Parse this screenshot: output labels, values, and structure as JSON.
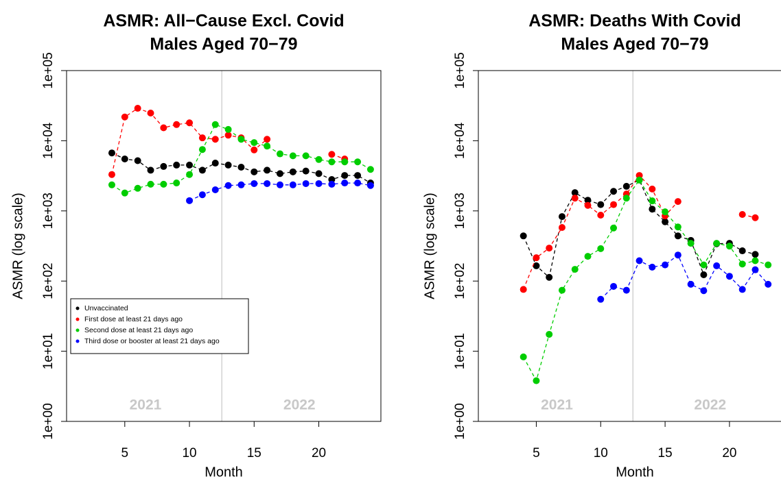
{
  "chart_data": [
    {
      "type": "scatter",
      "title": "ASMR: All−Cause Excl. Covid",
      "subtitle": "Males Aged 70−79",
      "xlabel": "Month",
      "ylabel": "ASMR (log scale)",
      "annotations": [
        "2021",
        "2022"
      ],
      "x": [
        4,
        5,
        6,
        7,
        8,
        9,
        10,
        11,
        12,
        13,
        14,
        15,
        16,
        17,
        18,
        19,
        20,
        21,
        22,
        23,
        24
      ],
      "series": [
        {
          "name": "Unvaccinated",
          "color": "#000000",
          "values": [
            6700,
            5500,
            5200,
            3800,
            4300,
            4500,
            4500,
            3800,
            4800,
            4500,
            4200,
            3600,
            3800,
            3400,
            3600,
            3700,
            3400,
            2800,
            3200,
            3200,
            2500
          ]
        },
        {
          "name": "First dose at least 21 days ago",
          "color": "#ff0000",
          "values": [
            3300,
            21800,
            29000,
            24800,
            15300,
            17000,
            18000,
            11000,
            10500,
            12000,
            11000,
            7400,
            10500,
            null,
            null,
            null,
            null,
            6400,
            5500,
            null,
            null
          ]
        },
        {
          "name": "Second dose at least 21 days ago",
          "color": "#00cd00",
          "values": [
            2350,
            1800,
            2100,
            2400,
            2400,
            2500,
            3300,
            7500,
            17000,
            14500,
            10500,
            9400,
            8400,
            6500,
            6100,
            6100,
            5400,
            5000,
            5000,
            5000,
            3900
          ]
        },
        {
          "name": "Third dose or booster at least 21 days ago",
          "color": "#0000ff",
          "values": [
            null,
            null,
            null,
            null,
            null,
            null,
            1400,
            1700,
            2000,
            2300,
            2350,
            2450,
            2450,
            2350,
            2350,
            2450,
            2450,
            2400,
            2500,
            2500,
            2300
          ]
        }
      ],
      "xlim": [
        0.5,
        24.8
      ],
      "xticks": [
        5,
        10,
        15,
        20
      ],
      "ylim": [
        1,
        100000
      ],
      "log_y": true,
      "yticks": [
        {
          "value": 1,
          "label": "1e+00"
        },
        {
          "value": 10,
          "label": "1e+01"
        },
        {
          "value": 100,
          "label": "1e+02"
        },
        {
          "value": 1000,
          "label": "1e+03"
        },
        {
          "value": 10000,
          "label": "1e+04"
        },
        {
          "value": 100000,
          "label": "1e+05"
        }
      ],
      "legend": "bottom-left"
    },
    {
      "type": "scatter",
      "title": "ASMR: Deaths With Covid",
      "subtitle": "Males Aged 70−79",
      "xlabel": "Month",
      "ylabel": "ASMR (log scale)",
      "annotations": [
        "2021",
        "2022"
      ],
      "x": [
        4,
        5,
        6,
        7,
        8,
        9,
        10,
        11,
        12,
        13,
        14,
        15,
        16,
        17,
        18,
        19,
        20,
        21,
        22,
        23,
        24
      ],
      "series": [
        {
          "color": "#000000",
          "values": [
            440,
            165,
            113,
            830,
            1820,
            1420,
            1230,
            1900,
            2240,
            2750,
            1060,
            700,
            440,
            380,
            123,
            340,
            345,
            270,
            240,
            null,
            null
          ]
        },
        {
          "color": "#ff0000",
          "values": [
            76,
            215,
            295,
            580,
            1520,
            1200,
            870,
            1230,
            1740,
            3200,
            2050,
            850,
            1360,
            null,
            null,
            null,
            null,
            890,
            800,
            null,
            null
          ]
        },
        {
          "color": "#00cd00",
          "values": [
            8.3,
            3.8,
            17.4,
            74,
            147,
            225,
            290,
            570,
            1520,
            2750,
            1390,
            970,
            590,
            345,
            170,
            345,
            315,
            175,
            195,
            170,
            null
          ]
        },
        {
          "color": "#0000ff",
          "values": [
            null,
            null,
            null,
            null,
            null,
            null,
            55,
            84,
            74,
            195,
            158,
            170,
            235,
            90,
            73,
            165,
            117,
            76,
            145,
            90,
            null
          ]
        }
      ],
      "xlim": [
        0.5,
        24.8
      ],
      "xticks": [
        5,
        10,
        15,
        20
      ],
      "ylim": [
        1,
        100000
      ],
      "log_y": true,
      "yticks": [
        {
          "value": 1,
          "label": "1e+00"
        },
        {
          "value": 10,
          "label": "1e+01"
        },
        {
          "value": 100,
          "label": "1e+02"
        },
        {
          "value": 1000,
          "label": "1e+03"
        },
        {
          "value": 10000,
          "label": "1e+04"
        },
        {
          "value": 100000,
          "label": "1e+05"
        }
      ]
    }
  ]
}
